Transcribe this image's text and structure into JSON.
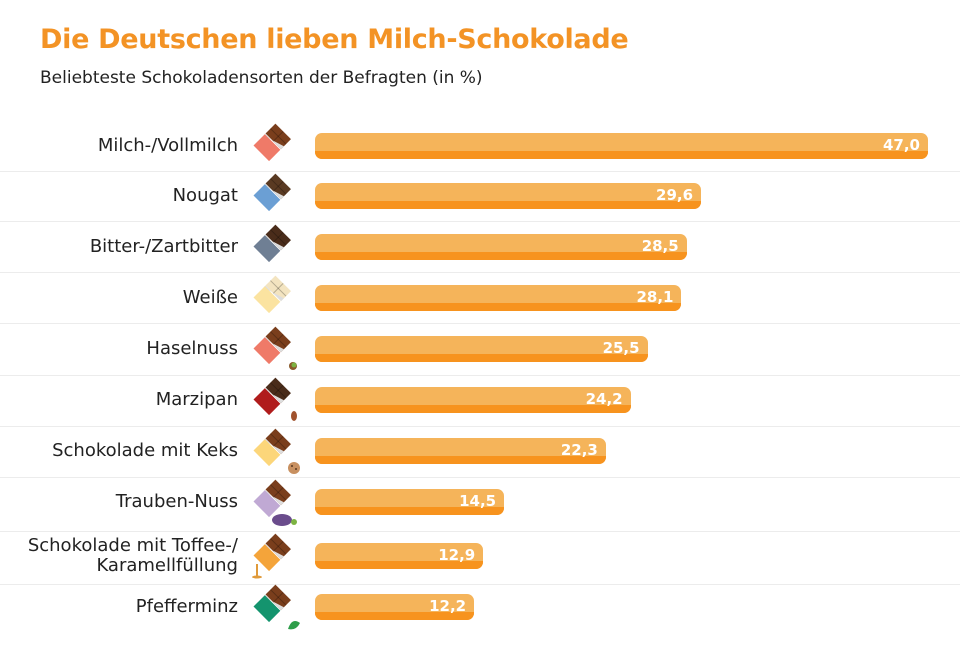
{
  "title": "Die Deutschen lieben Milch-Schokolade",
  "subtitle": "Beliebteste Schokoladensorten der Befragten (in %)",
  "colors": {
    "bar": "#f5b45a",
    "bar_shade": "#f7931e",
    "title": "#f39325",
    "chocolate": "#7a3e1c"
  },
  "chart_data": {
    "type": "bar",
    "orientation": "horizontal",
    "title": "Die Deutschen lieben Milch-Schokolade",
    "subtitle": "Beliebteste Schokoladensorten der Befragten (in %)",
    "xlim": [
      0,
      47
    ],
    "categories": [
      "Milch-/Vollmilch",
      "Nougat",
      "Bitter-/Zartbitter",
      "Weiße",
      "Haselnuss",
      "Marzipan",
      "Schokolade mit Keks",
      "Trauben-Nuss",
      "Schokolade mit Toffee-/\nKaramellfüllung",
      "Pfefferminz"
    ],
    "values": [
      47.0,
      29.6,
      28.5,
      28.1,
      25.5,
      24.2,
      22.3,
      14.5,
      12.9,
      12.2
    ],
    "value_labels": [
      "47,0",
      "29,6",
      "28,5",
      "28,1",
      "25,5",
      "24,2",
      "22,3",
      "14,5",
      "12,9",
      "12,2"
    ],
    "icons": [
      {
        "name": "milk-chocolate-icon",
        "wrapper": "#ef7a68",
        "choc": "#7a3e1c",
        "extra": ""
      },
      {
        "name": "nougat-chocolate-icon",
        "wrapper": "#6b9fd4",
        "choc": "#5a3a22",
        "extra": ""
      },
      {
        "name": "dark-chocolate-icon",
        "wrapper": "#6f7f94",
        "choc": "#4a2c1a",
        "extra": ""
      },
      {
        "name": "white-chocolate-icon",
        "wrapper": "#fbe3a0",
        "choc": "#f3e4c0",
        "extra": ""
      },
      {
        "name": "hazelnut-chocolate-icon",
        "wrapper": "#ef7a68",
        "choc": "#7a3e1c",
        "extra": "nut"
      },
      {
        "name": "marzipan-chocolate-icon",
        "wrapper": "#b01c1c",
        "choc": "#4a2c1a",
        "extra": "almond"
      },
      {
        "name": "cookie-chocolate-icon",
        "wrapper": "#fcd67a",
        "choc": "#7a3e1c",
        "extra": "cookie"
      },
      {
        "name": "raisin-nut-chocolate-icon",
        "wrapper": "#c0a9d4",
        "choc": "#7a3e1c",
        "extra": "grapes"
      },
      {
        "name": "caramel-chocolate-icon",
        "wrapper": "#f4a43a",
        "choc": "#7a3e1c",
        "extra": "caramel"
      },
      {
        "name": "peppermint-chocolate-icon",
        "wrapper": "#14946e",
        "choc": "#7a3e1c",
        "extra": "mint"
      }
    ]
  }
}
